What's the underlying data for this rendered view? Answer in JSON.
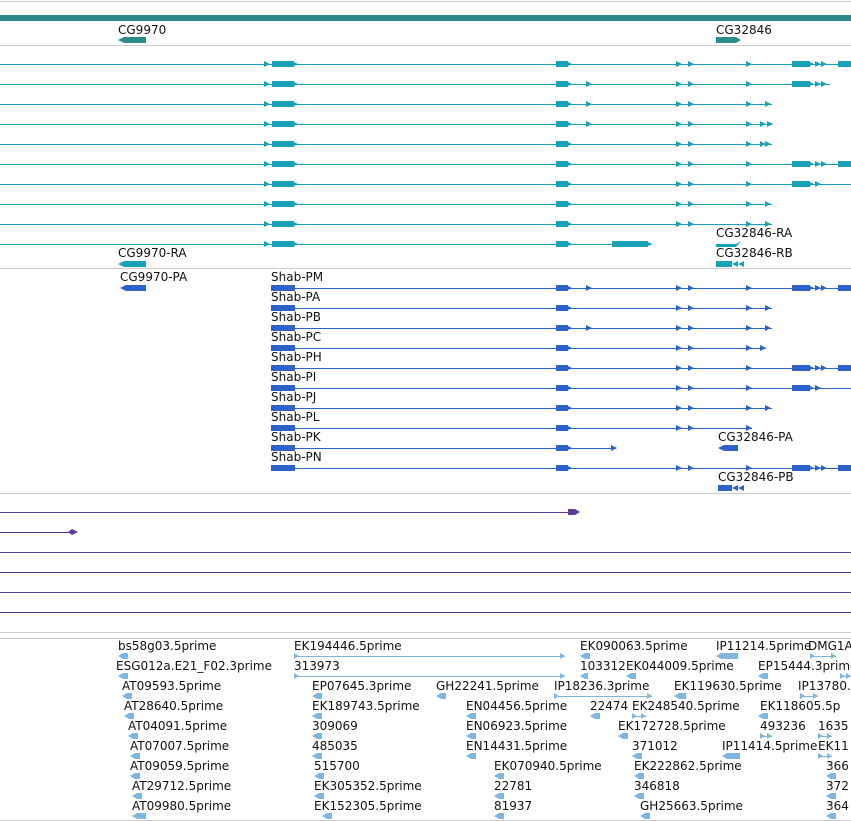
{
  "colors": {
    "gene": "#2e8b8b",
    "transcript": "#17a2b8",
    "protein": "#2d63c8",
    "purple": "#5c3d99",
    "est": "#7fb6e0",
    "divider": "#cccccc",
    "label": "#111111"
  },
  "gene_track": {
    "labels": [
      "CG9970",
      "CG32846"
    ]
  },
  "transcript_track": {
    "labels": [
      "CG9970-RA",
      "CG32846-RA",
      "CG32846-RB"
    ]
  },
  "protein_track": {
    "cg_labels": [
      "CG9970-PA",
      "CG32846-PA",
      "CG32846-PB"
    ],
    "shab_labels": [
      "Shab-PM",
      "Shab-PA",
      "Shab-PB",
      "Shab-PC",
      "Shab-PH",
      "Shab-PI",
      "Shab-PJ",
      "Shab-PL",
      "Shab-PK",
      "Shab-PN"
    ]
  },
  "est_track": {
    "labels": [
      "bs58g03.5prime",
      "EK194446.5prime",
      "EK090063.5prime",
      "IP11214.5prime",
      "DMG1A",
      "ESG012a.E21_F02.3prime",
      "313973",
      "103312",
      "EK044009.5prime",
      "EP15444.3prime",
      "AT09593.5prime",
      "EP07645.3prime",
      "GH22241.5prime",
      "IP18236.3prime",
      "EK119630.5prime",
      "IP13780.",
      "AT28640.5prime",
      "EK189743.5prime",
      "EN04456.5prime",
      "22474",
      "EK248540.5prime",
      "EK118605.5p",
      "AT04091.5prime",
      "309069",
      "EN06923.5prime",
      "EK172728.5prime",
      "493236",
      "1635",
      "AT07007.5prime",
      "485035",
      "EN14431.5prime",
      "371012",
      "IP11414.5prime",
      "EK11",
      "AT09059.5prime",
      "515700",
      "EK070940.5prime",
      "EK222862.5prime",
      "366",
      "AT29712.5prime",
      "EK305352.5prime",
      "22781",
      "346818",
      "372",
      "AT09980.5prime",
      "EK152305.5prime",
      "81937",
      "GH25663.5prime",
      "364"
    ]
  }
}
